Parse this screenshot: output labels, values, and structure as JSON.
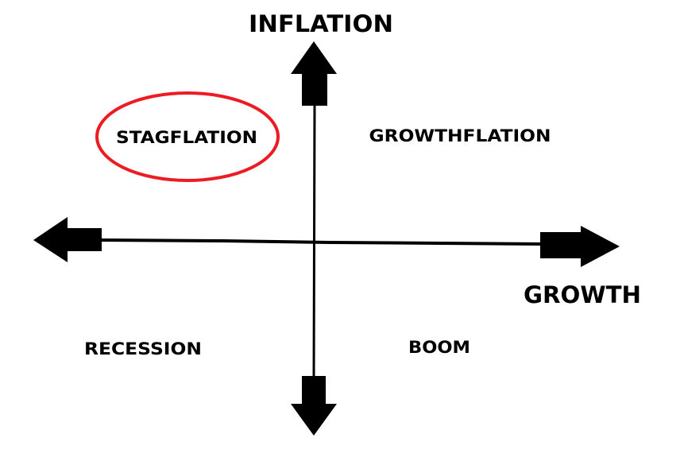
{
  "axes": {
    "vertical_label": "INFLATION",
    "horizontal_label": "GROWTH"
  },
  "quadrants": {
    "top_left": "STAGFLATION",
    "top_right": "GROWTHFLATION",
    "bottom_left": "RECESSION",
    "bottom_right": "BOOM"
  },
  "highlight": {
    "quadrant": "top_left",
    "color": "#ed1c24"
  },
  "colors": {
    "axis": "#000000",
    "background": "#ffffff"
  }
}
